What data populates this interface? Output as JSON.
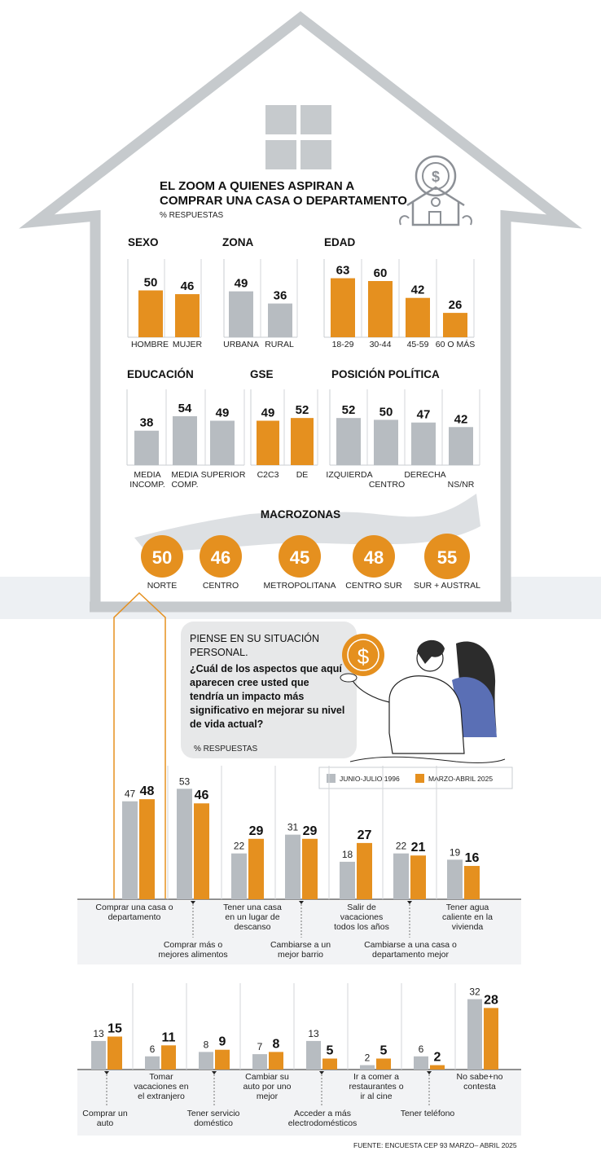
{
  "colors": {
    "gray": "#b7bcc1",
    "orange": "#e5901f",
    "house": "#c6cacd",
    "bubble": "#e7e8e9",
    "band": "#edf0f3",
    "blue": "#5a6fb5"
  },
  "house_icon": "house-with-dollar-coin-icon",
  "header": {
    "title_line1": "EL ZOOM A QUIENES ASPIRAN A",
    "title_line2": "COMPRAR UNA CASA O DEPARTAMENTO",
    "subtitle": "% RESPUESTAS"
  },
  "chart_data": [
    {
      "id": "sexo",
      "type": "bar",
      "title": "SEXO",
      "categories": [
        "HOMBRE",
        "MUJER"
      ],
      "values": [
        50,
        46
      ],
      "ylim": [
        0,
        80
      ]
    },
    {
      "id": "zona",
      "type": "bar",
      "title": "ZONA",
      "categories": [
        "URBANA",
        "RURAL"
      ],
      "values": [
        49,
        36
      ],
      "ylim": [
        0,
        80
      ]
    },
    {
      "id": "edad",
      "type": "bar",
      "title": "EDAD",
      "categories": [
        "18-29",
        "30-44",
        "45-59",
        "60 O MÁS"
      ],
      "values": [
        63,
        60,
        42,
        26
      ],
      "ylim": [
        0,
        80
      ]
    },
    {
      "id": "educacion",
      "type": "bar",
      "title": "EDUCACIÓN",
      "categories": [
        "MEDIA INCOMP.",
        "MEDIA COMP.",
        "SUPERIOR"
      ],
      "values": [
        38,
        54,
        49
      ],
      "ylim": [
        0,
        80
      ]
    },
    {
      "id": "gse",
      "type": "bar",
      "title": "GSE",
      "categories": [
        "C2C3",
        "DE"
      ],
      "values": [
        49,
        52
      ],
      "ylim": [
        0,
        80
      ]
    },
    {
      "id": "posicion",
      "type": "bar",
      "title": "POSICIÓN POLÍTICA",
      "categories": [
        "IZQUIERDA",
        "CENTRO",
        "DERECHA",
        "NS/NR"
      ],
      "values": [
        52,
        50,
        47,
        42
      ],
      "ylim": [
        0,
        80
      ]
    },
    {
      "id": "macrozonas",
      "type": "bar",
      "title": "MACROZONAS",
      "categories": [
        "NORTE",
        "CENTRO",
        "METROPOLITANA",
        "CENTRO SUR",
        "SUR + AUSTRAL"
      ],
      "values": [
        50,
        46,
        45,
        48,
        55
      ]
    },
    {
      "id": "aspectos",
      "type": "bar",
      "series": [
        {
          "name": "JUNIO-JULIO 1996"
        },
        {
          "name": "MARZO-ABRIL 2025"
        }
      ],
      "rows": [
        {
          "categories": [
            "Comprar una casa o departamento",
            "Comprar más o mejores alimentos",
            "Tener una casa en un lugar de descanso",
            "Cambiarse a un mejor barrio",
            "Salir de vacaciones todos los años",
            "Cambiarse a una casa o departamento mejor",
            "Tener agua caliente en la vivienda"
          ],
          "v1996": [
            47,
            53,
            22,
            31,
            18,
            22,
            19
          ],
          "v2025": [
            48,
            46,
            29,
            29,
            27,
            21,
            16
          ]
        },
        {
          "categories": [
            "Comprar un auto",
            "Tomar vacaciones en el extranjero",
            "Tener servicio doméstico",
            "Cambiar su auto por uno mejor",
            "Acceder a más electrodomésticos",
            "Ir a comer a restaurantes o ir al cine",
            "Tener teléfono",
            "No sabe+no contesta"
          ],
          "v1996": [
            13,
            6,
            8,
            7,
            13,
            2,
            6,
            32
          ],
          "v2025": [
            15,
            11,
            9,
            8,
            5,
            5,
            2,
            28
          ]
        }
      ]
    }
  ],
  "question": {
    "intro_line1": "PIENSE EN SU SITUACIÓN",
    "intro_line2": "PERSONAL.",
    "q_line1": "¿Cuál de los aspectos que aquí",
    "q_line2": "aparecen cree usted que",
    "q_line3": "tendría un impacto más",
    "q_line4": "significativo en mejorar su nivel",
    "q_line5": "de vida actual?",
    "subtitle": "% RESPUESTAS"
  },
  "legend": {
    "s1996": "JUNIO-JULIO 1996",
    "s2025": "MARZO-ABRIL 2025"
  },
  "row1_labels": [
    [
      "Comprar una casa o",
      "departamento"
    ],
    [
      "Comprar más o",
      "mejores alimentos"
    ],
    [
      "Tener una casa",
      "en un lugar de",
      "descanso"
    ],
    [
      "Cambiarse a un",
      "mejor barrio"
    ],
    [
      "Salir de",
      "vacaciones",
      "todos los años"
    ],
    [
      "Cambiarse a una casa o",
      "departamento mejor"
    ],
    [
      "Tener agua",
      "caliente en la",
      "vivienda"
    ]
  ],
  "row2_labels": [
    [
      "Comprar un",
      "auto"
    ],
    [
      "Tomar",
      "vacaciones en",
      "el extranjero"
    ],
    [
      "Tener servicio",
      "doméstico"
    ],
    [
      "Cambiar su",
      "auto por uno",
      "mejor"
    ],
    [
      "Acceder a más",
      "electrodomésticos"
    ],
    [
      "Ir a comer a",
      "restaurantes o",
      "ir al cine"
    ],
    [
      "Tener teléfono"
    ],
    [
      "No sabe+no",
      "contesta"
    ]
  ],
  "source": "FUENTE: ENCUESTA CEP 93 MARZO– ABRIL 2025"
}
